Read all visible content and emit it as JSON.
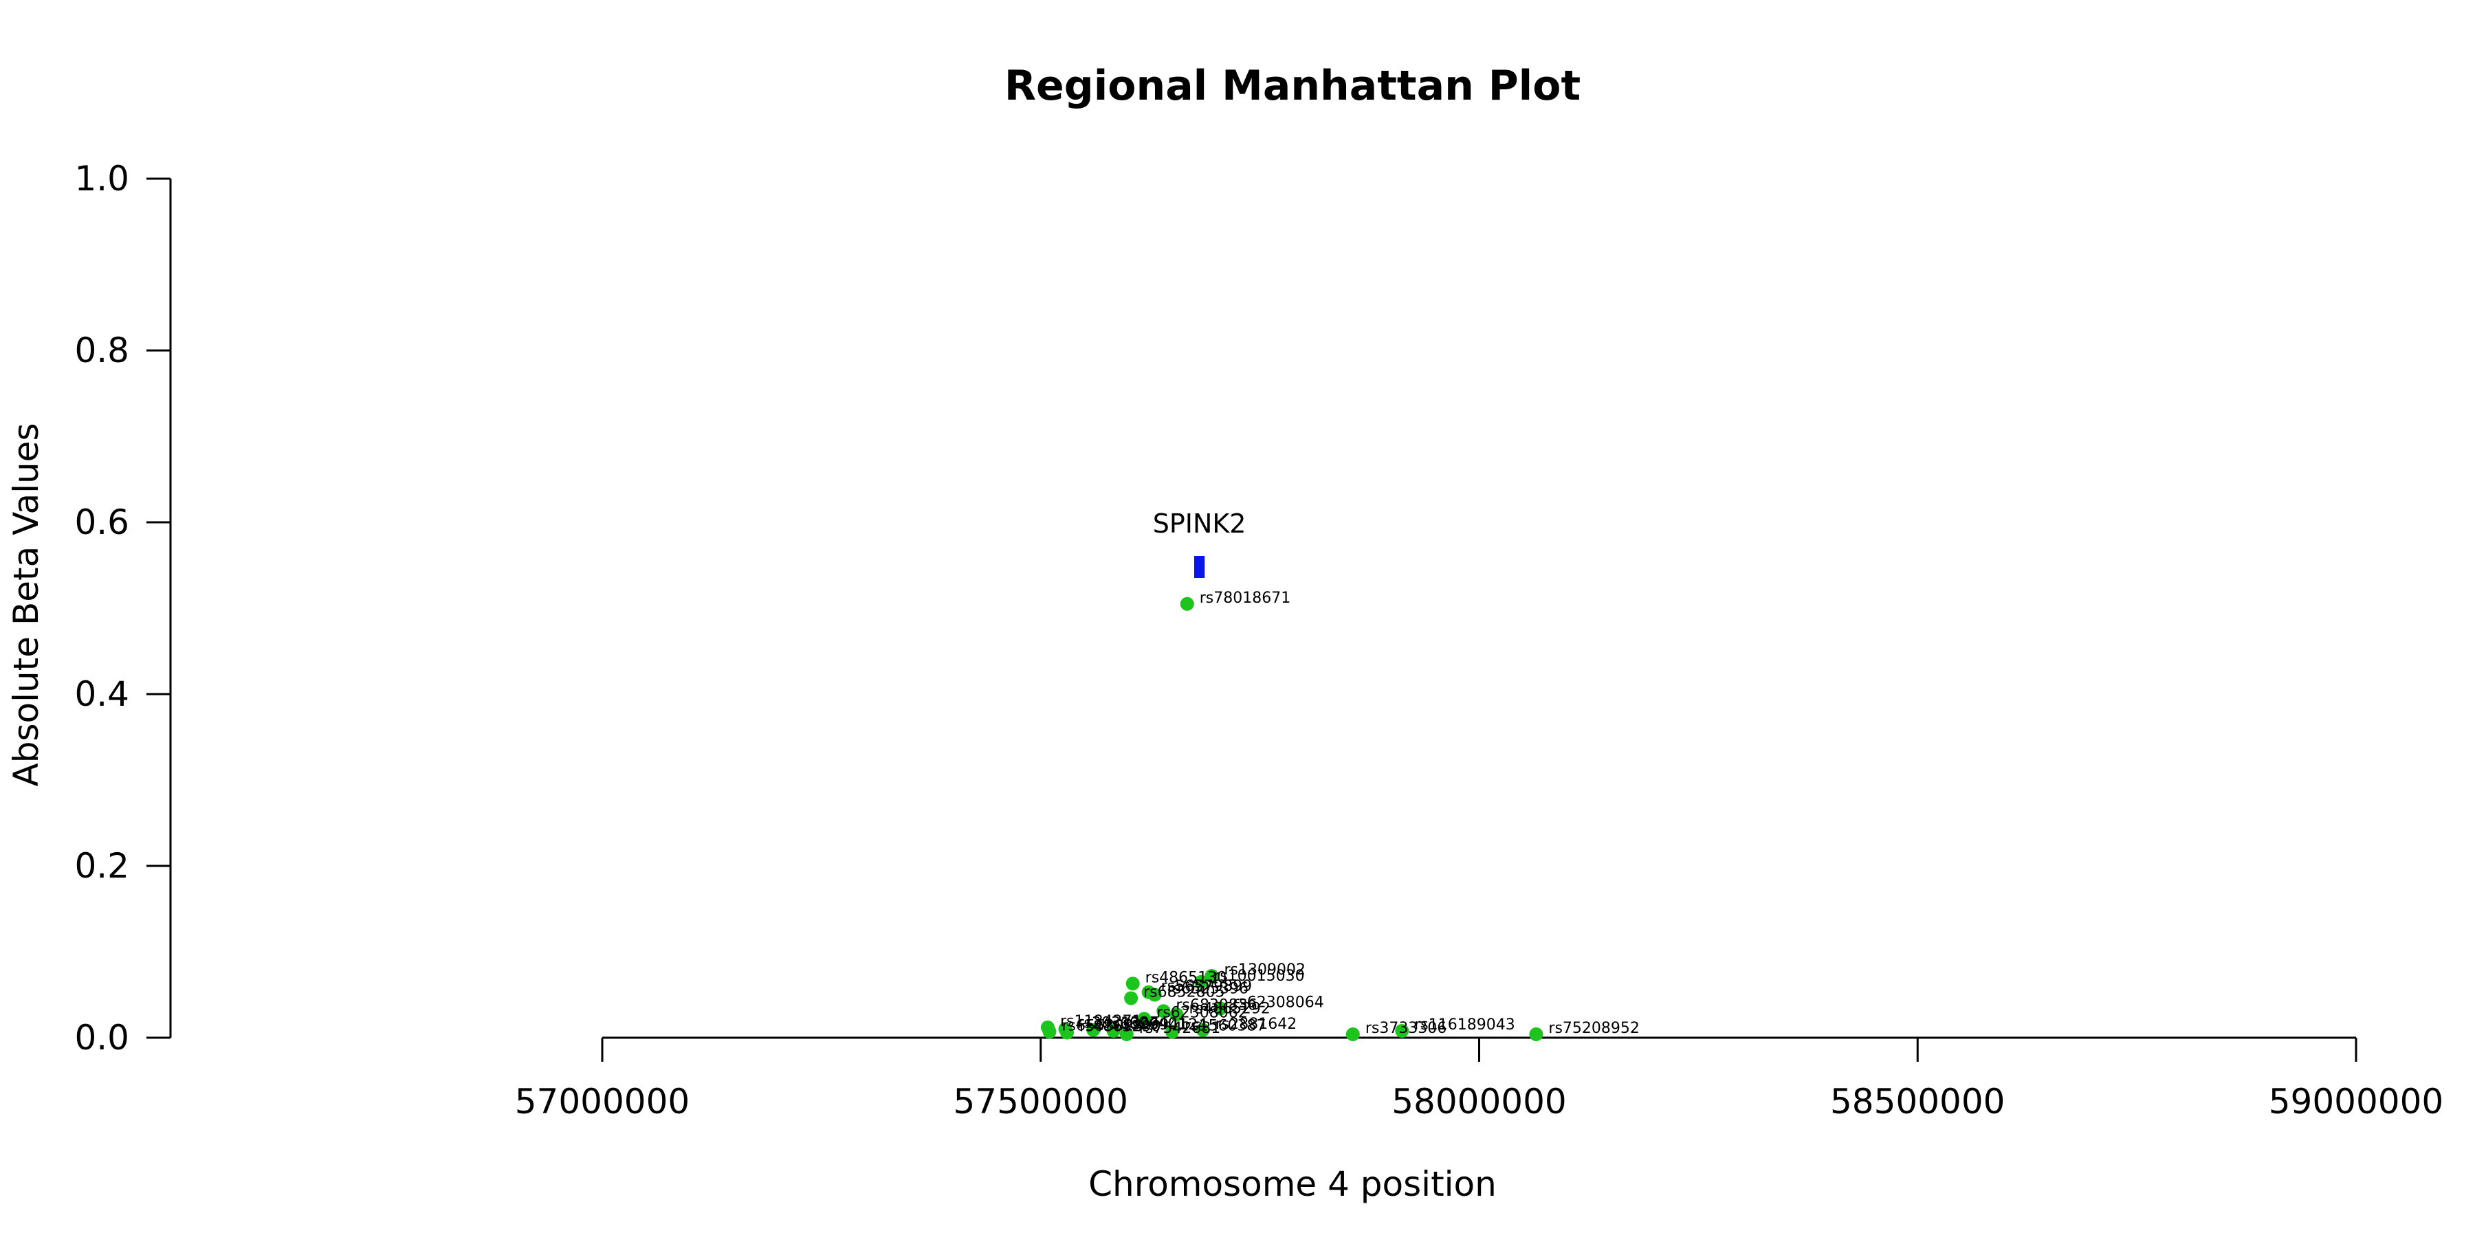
{
  "chart_data": {
    "type": "scatter",
    "title": "Regional Manhattan Plot",
    "xlabel": "Chromosome 4 position",
    "ylabel": "Absolute Beta Values",
    "xlim": [
      57000000,
      59000000
    ],
    "ylim": [
      0,
      1
    ],
    "x_ticks": [
      57000000,
      57500000,
      58000000,
      58500000,
      59000000
    ],
    "x_tick_labels": [
      "57000000",
      "57500000",
      "58000000",
      "58500000",
      "59000000"
    ],
    "y_ticks": [
      0,
      0.2,
      0.4,
      0.6,
      0.8,
      1.0
    ],
    "y_tick_labels": [
      "0.0",
      "0.2",
      "0.4",
      "0.6",
      "0.8",
      "1.0"
    ],
    "point_color": "#1ec41e",
    "gene_color": "#0a14f0",
    "genes": [
      {
        "name": "SPINK2",
        "start": 57675000,
        "end": 57687000,
        "y": 0.548
      }
    ],
    "points": [
      {
        "label": "rs78018671",
        "x": 57667000,
        "y": 0.505
      },
      {
        "label": "rs1309002",
        "x": 57695000,
        "y": 0.072
      },
      {
        "label": "rs10015030",
        "x": 57683000,
        "y": 0.065
      },
      {
        "label": "rs4865130",
        "x": 57605000,
        "y": 0.063
      },
      {
        "label": "rs56579899",
        "x": 57623000,
        "y": 0.053
      },
      {
        "label": "rs6525396",
        "x": 57630000,
        "y": 0.05
      },
      {
        "label": "rs6852805",
        "x": 57603000,
        "y": 0.046
      },
      {
        "label": "rs62308064",
        "x": 57705000,
        "y": 0.034
      },
      {
        "label": "rs6830836",
        "x": 57640000,
        "y": 0.031
      },
      {
        "label": "rs4865292",
        "x": 57655000,
        "y": 0.027
      },
      {
        "label": "rs62308062",
        "x": 57618000,
        "y": 0.022
      },
      {
        "label": "rs1184271",
        "x": 57508000,
        "y": 0.012
      },
      {
        "label": "rs2031327",
        "x": 57528000,
        "y": 0.01
      },
      {
        "label": "rs6826401",
        "x": 57560000,
        "y": 0.009
      },
      {
        "label": "rs9994124",
        "x": 57583000,
        "y": 0.008
      },
      {
        "label": "rs6553024",
        "x": 57510000,
        "y": 0.007
      },
      {
        "label": "rs4865290",
        "x": 57530000,
        "y": 0.006
      },
      {
        "label": "rs2881642",
        "x": 57685000,
        "y": 0.009
      },
      {
        "label": "rs1560387",
        "x": 57650000,
        "y": 0.007
      },
      {
        "label": "rs7542681",
        "x": 57598000,
        "y": 0.004
      },
      {
        "label": "rs3733306",
        "x": 57856000,
        "y": 0.004
      },
      {
        "label": "rs116189043",
        "x": 57912000,
        "y": 0.008
      },
      {
        "label": "rs75208952",
        "x": 58065000,
        "y": 0.004
      }
    ]
  }
}
